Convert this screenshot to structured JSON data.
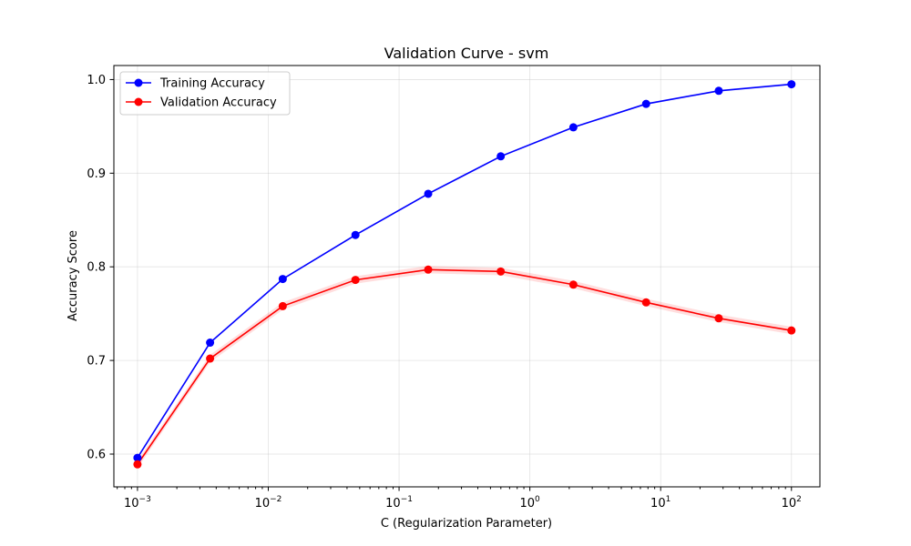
{
  "chart_data": {
    "type": "line",
    "title": "Validation Curve - svm",
    "xlabel": "C (Regularization Parameter)",
    "ylabel": "Accuracy Score",
    "xscale": "log",
    "xlim": [
      0.00066,
      165
    ],
    "ylim": [
      0.565,
      1.015
    ],
    "grid": true,
    "legend_position": "top-left",
    "x": [
      0.001,
      0.00359,
      0.0129,
      0.0464,
      0.167,
      0.599,
      2.15,
      7.74,
      27.8,
      100
    ],
    "x_ticks": [
      {
        "value": 0.001,
        "base": "10",
        "exp": "−3"
      },
      {
        "value": 0.01,
        "base": "10",
        "exp": "−2"
      },
      {
        "value": 0.1,
        "base": "10",
        "exp": "−1"
      },
      {
        "value": 1,
        "base": "10",
        "exp": "0"
      },
      {
        "value": 10,
        "base": "10",
        "exp": "1"
      },
      {
        "value": 100,
        "base": "10",
        "exp": "2"
      }
    ],
    "y_ticks": [
      0.6,
      0.7,
      0.8,
      0.9,
      1.0
    ],
    "y_tick_labels": [
      "0.6",
      "0.7",
      "0.8",
      "0.9",
      "1.0"
    ],
    "series": [
      {
        "name": "Training Accuracy",
        "color": "#0000ff",
        "values": [
          0.596,
          0.719,
          0.787,
          0.834,
          0.878,
          0.918,
          0.949,
          0.974,
          0.988,
          0.995
        ],
        "band": 0.001
      },
      {
        "name": "Validation Accuracy",
        "color": "#ff0000",
        "values": [
          0.589,
          0.702,
          0.758,
          0.786,
          0.797,
          0.795,
          0.781,
          0.762,
          0.745,
          0.732
        ],
        "band": 0.004
      }
    ]
  }
}
